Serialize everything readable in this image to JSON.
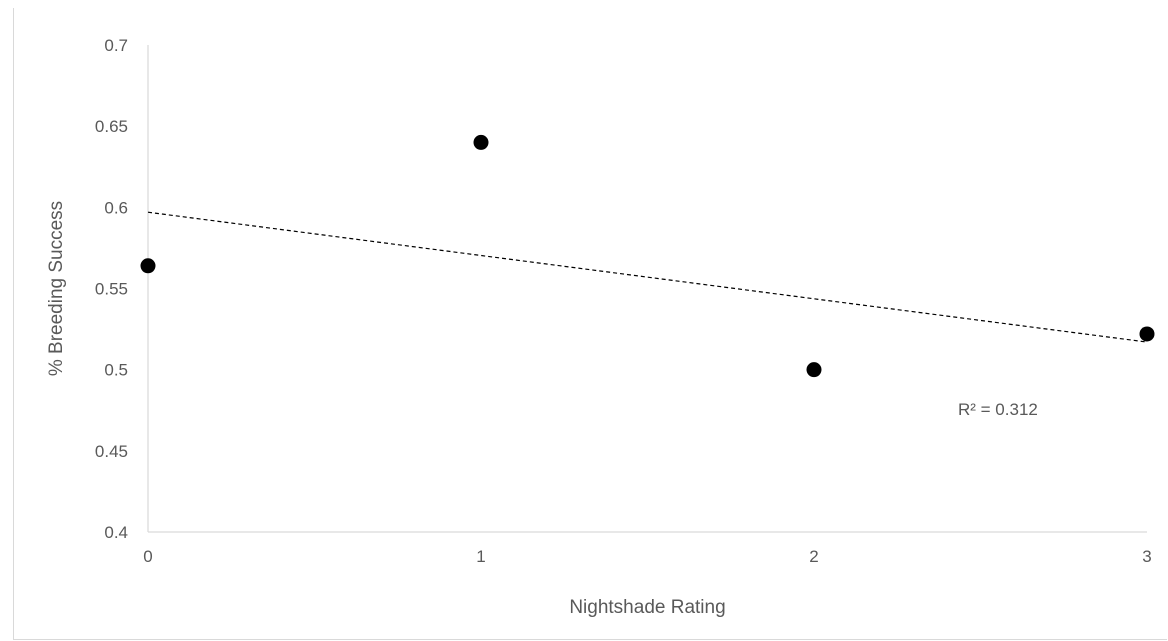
{
  "chart_data": {
    "type": "scatter",
    "title": "",
    "xlabel": "Nightshade Rating",
    "ylabel": "% Breeding Success",
    "xlim": [
      0,
      3
    ],
    "ylim": [
      0.4,
      0.7
    ],
    "x_ticks": [
      "0",
      "1",
      "2",
      "3"
    ],
    "y_ticks": [
      "0.4",
      "0.45",
      "0.5",
      "0.55",
      "0.6",
      "0.65",
      "0.7"
    ],
    "grid": false,
    "legend": "none",
    "series": [
      {
        "points": [
          {
            "x": 0,
            "y": 0.564
          },
          {
            "x": 1,
            "y": 0.64
          },
          {
            "x": 2,
            "y": 0.5
          },
          {
            "x": 3,
            "y": 0.522
          }
        ],
        "color": "#000000"
      }
    ],
    "trendline": {
      "type": "linear",
      "x_range": [
        0,
        3
      ],
      "y_at_start": 0.597,
      "y_at_end": 0.517,
      "style": "dashed",
      "color": "#000000",
      "annotation": "R² = 0.312"
    }
  }
}
